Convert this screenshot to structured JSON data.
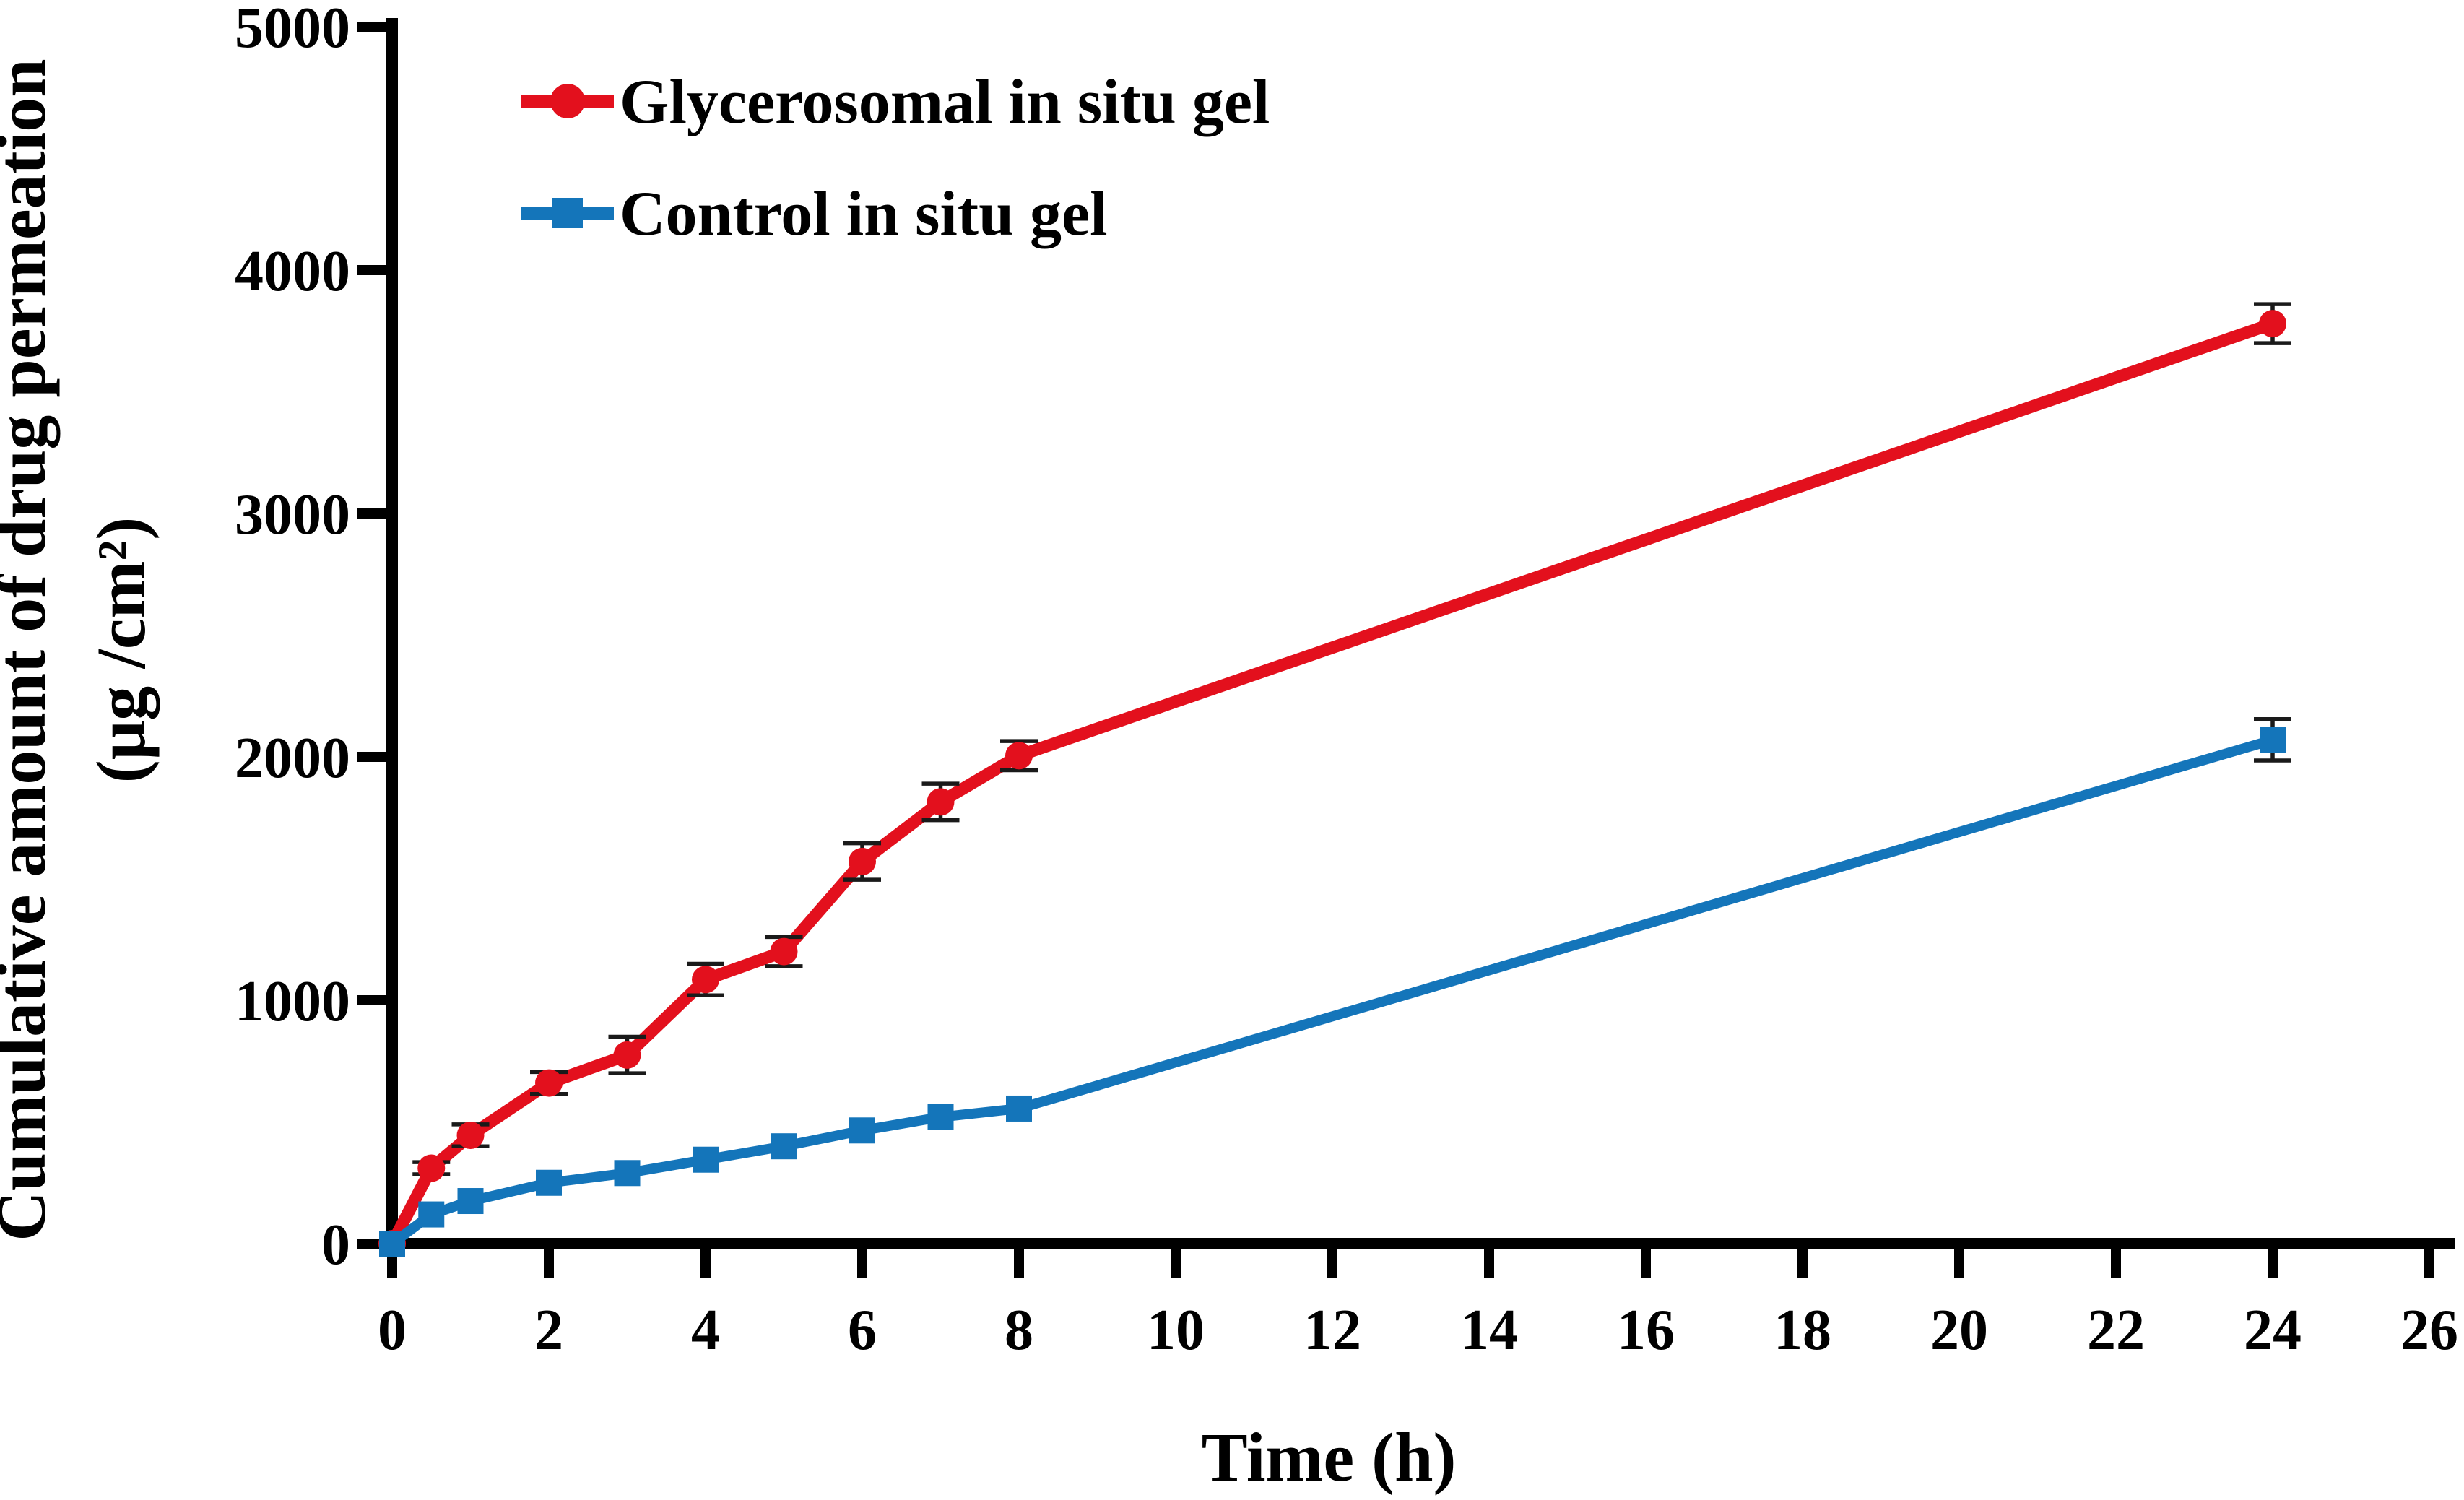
{
  "figure": {
    "y_axis_title_line1": "Cumulative amount of drug permeation",
    "y_axis_title_line2": "(μg /cm²)",
    "x_axis_title": "Time (h)"
  },
  "chart_data": {
    "type": "line",
    "title": "",
    "xlabel": "Time (h)",
    "ylabel": "Cumulative amount of drug permeation (μg /cm²)",
    "x": [
      0,
      0.5,
      1,
      2,
      3,
      4,
      5,
      6,
      7,
      8,
      24
    ],
    "series": [
      {
        "name": "Glycerosomal in situ gel",
        "color": "#e3101d",
        "marker": "circle",
        "values": [
          0,
          310,
          445,
          660,
          775,
          1085,
          1200,
          1570,
          1815,
          2005,
          3780
        ],
        "errors": [
          0,
          25,
          45,
          45,
          75,
          65,
          60,
          75,
          75,
          60,
          80
        ]
      },
      {
        "name": "Control in situ gel",
        "color": "#1475ba",
        "marker": "square",
        "values": [
          0,
          120,
          175,
          250,
          290,
          345,
          400,
          465,
          520,
          555,
          2070
        ],
        "errors": [
          0,
          0,
          0,
          0,
          0,
          0,
          0,
          0,
          0,
          0,
          85
        ]
      }
    ],
    "x_ticks": [
      0,
      2,
      4,
      6,
      8,
      10,
      12,
      14,
      16,
      18,
      20,
      22,
      24,
      26
    ],
    "y_ticks": [
      0,
      1000,
      2000,
      3000,
      4000,
      5000
    ],
    "xlim": [
      0,
      26
    ],
    "ylim": [
      0,
      5000
    ],
    "grid": false,
    "legend_position": "top-left-inside",
    "error_bar_color": "#1a1a1a"
  }
}
